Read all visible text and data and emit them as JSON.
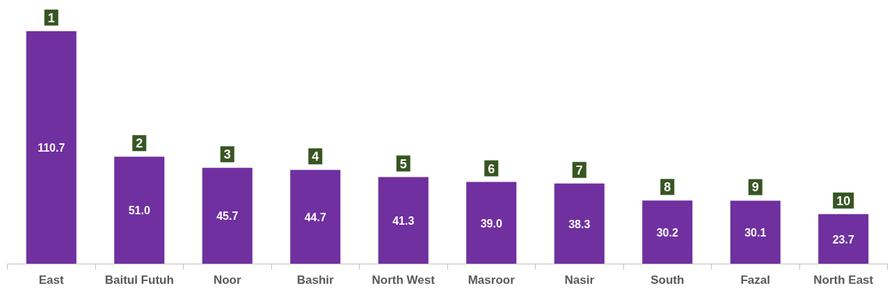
{
  "chart_data": {
    "type": "bar",
    "categories": [
      "East",
      "Baitul Futuh",
      "Noor",
      "Bashir",
      "North West",
      "Masroor",
      "Nasir",
      "South",
      "Fazal",
      "North East"
    ],
    "values": [
      110.7,
      51.0,
      45.7,
      44.7,
      41.3,
      39.0,
      38.3,
      30.2,
      30.1,
      23.7
    ],
    "color": "#7030a0",
    "data_labels": true,
    "value_labels": [
      "110.7",
      "51.0",
      "45.7",
      "44.7",
      "41.3",
      "39.0",
      "38.3",
      "30.2",
      "30.1",
      "23.7"
    ],
    "annotations": [
      {
        "text": "1",
        "x": "East",
        "y": 110.7
      },
      {
        "text": "2",
        "x": "Baitul Futuh",
        "y": 51.0
      },
      {
        "text": "3",
        "x": "Noor",
        "y": 45.7
      },
      {
        "text": "4",
        "x": "Bashir",
        "y": 44.7
      },
      {
        "text": "5",
        "x": "North West",
        "y": 41.3
      },
      {
        "text": "6",
        "x": "Masroor",
        "y": 39.0
      },
      {
        "text": "7",
        "x": "Nasir",
        "y": 38.3
      },
      {
        "text": "8",
        "x": "South",
        "y": 30.2
      },
      {
        "text": "9",
        "x": "Fazal",
        "y": 30.1
      },
      {
        "text": "10",
        "x": "North East",
        "y": 23.7
      }
    ],
    "grid": false
  }
}
